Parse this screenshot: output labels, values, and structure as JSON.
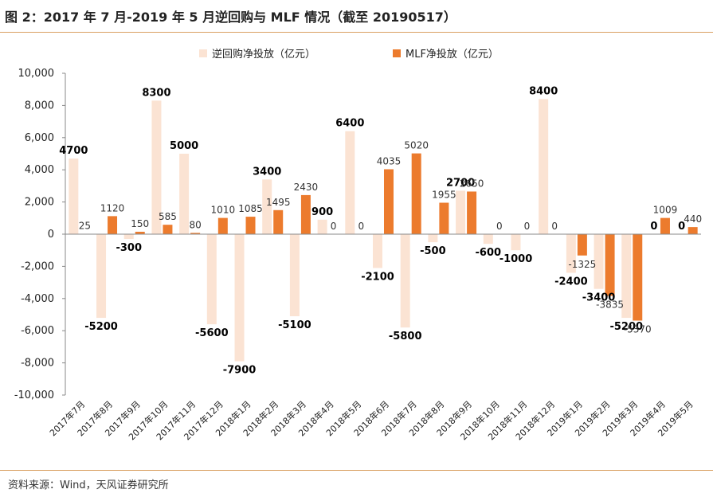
{
  "title": "图 2：2017 年 7 月-2019 年 5 月逆回购与 MLF 情况（截至 20190517）",
  "source": "资料来源：Wind，天风证券研究所",
  "colors": {
    "reverse_repo": "#fbe3d3",
    "mlf": "#ec7b2d",
    "rule": "#d9a063",
    "axis": "#888888"
  },
  "chart_data": {
    "type": "bar",
    "title": "图 2：2017 年 7 月-2019 年 5 月逆回购与 MLF 情况（截至 20190517）",
    "xlabel": "",
    "ylabel": "",
    "ylim": [
      -10000,
      10000
    ],
    "yticks": [
      10000,
      8000,
      6000,
      4000,
      2000,
      0,
      -2000,
      -4000,
      -6000,
      -8000,
      -10000
    ],
    "ytick_labels": [
      "10,000",
      "8,000",
      "6,000",
      "4,000",
      "2,000",
      "0",
      "-2,000",
      "-4,000",
      "-6,000",
      "-8,000",
      "-10,000"
    ],
    "grid": false,
    "legend_position": "top",
    "categories": [
      "2017年7月",
      "2017年8月",
      "2017年9月",
      "2017年10月",
      "2017年11月",
      "2017年12月",
      "2018年1月",
      "2018年2月",
      "2018年3月",
      "2018年4月",
      "2018年5月",
      "2018年6月",
      "2018年7月",
      "2018年8月",
      "2018年9月",
      "2018年10月",
      "2018年11月",
      "2018年12月",
      "2019年1月",
      "2019年2月",
      "2019年3月",
      "2019年4月",
      "2019年5月"
    ],
    "series": [
      {
        "name": "逆回购净投放（亿元）",
        "color": "#fbe3d3",
        "values": [
          4700,
          -5200,
          -300,
          8300,
          5000,
          -5600,
          -7900,
          3400,
          -5100,
          900,
          6400,
          -2100,
          -5800,
          -500,
          2700,
          -600,
          -1000,
          8400,
          -2400,
          -3400,
          -5200,
          0,
          0
        ]
      },
      {
        "name": "MLF净投放（亿元）",
        "color": "#ec7b2d",
        "values": [
          25,
          1120,
          150,
          585,
          80,
          1010,
          1085,
          1495,
          2430,
          0,
          0,
          4035,
          5020,
          1955,
          2650,
          0,
          0,
          0,
          -1325,
          -3835,
          -5370,
          1009,
          440
        ]
      }
    ]
  }
}
